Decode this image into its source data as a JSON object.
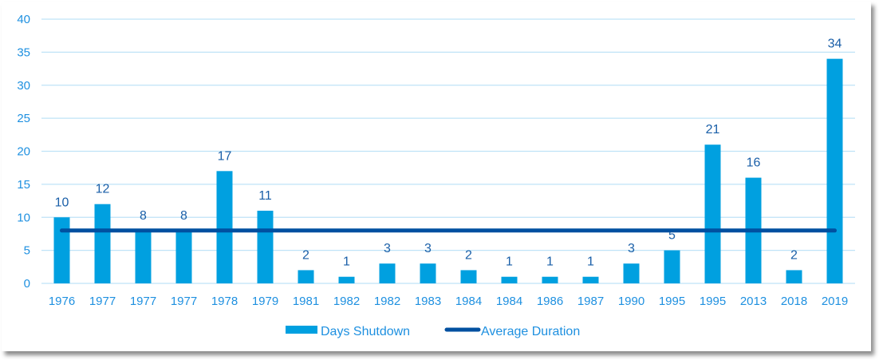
{
  "chart_data": {
    "type": "bar",
    "categories": [
      "1976",
      "1977",
      "1977",
      "1977",
      "1978",
      "1979",
      "1981",
      "1982",
      "1982",
      "1983",
      "1984",
      "1984",
      "1986",
      "1987",
      "1990",
      "1995",
      "1995",
      "2013",
      "2018",
      "2019"
    ],
    "series": [
      {
        "name": "Days Shutdown",
        "type": "bar",
        "color": "#00a0e0",
        "values": [
          10,
          12,
          8,
          8,
          17,
          11,
          2,
          1,
          3,
          3,
          2,
          1,
          1,
          1,
          3,
          5,
          21,
          16,
          2,
          34
        ]
      },
      {
        "name": "Average Duration",
        "type": "line",
        "color": "#0050a0",
        "values": [
          8,
          8,
          8,
          8,
          8,
          8,
          8,
          8,
          8,
          8,
          8,
          8,
          8,
          8,
          8,
          8,
          8,
          8,
          8,
          8
        ]
      }
    ],
    "yticks": [
      "0",
      "5",
      "10",
      "15",
      "20",
      "25",
      "30",
      "35",
      "40"
    ],
    "ylim": [
      0,
      40
    ],
    "grid": true,
    "legend": "bottom",
    "title": "",
    "xlabel": "",
    "ylabel": ""
  }
}
